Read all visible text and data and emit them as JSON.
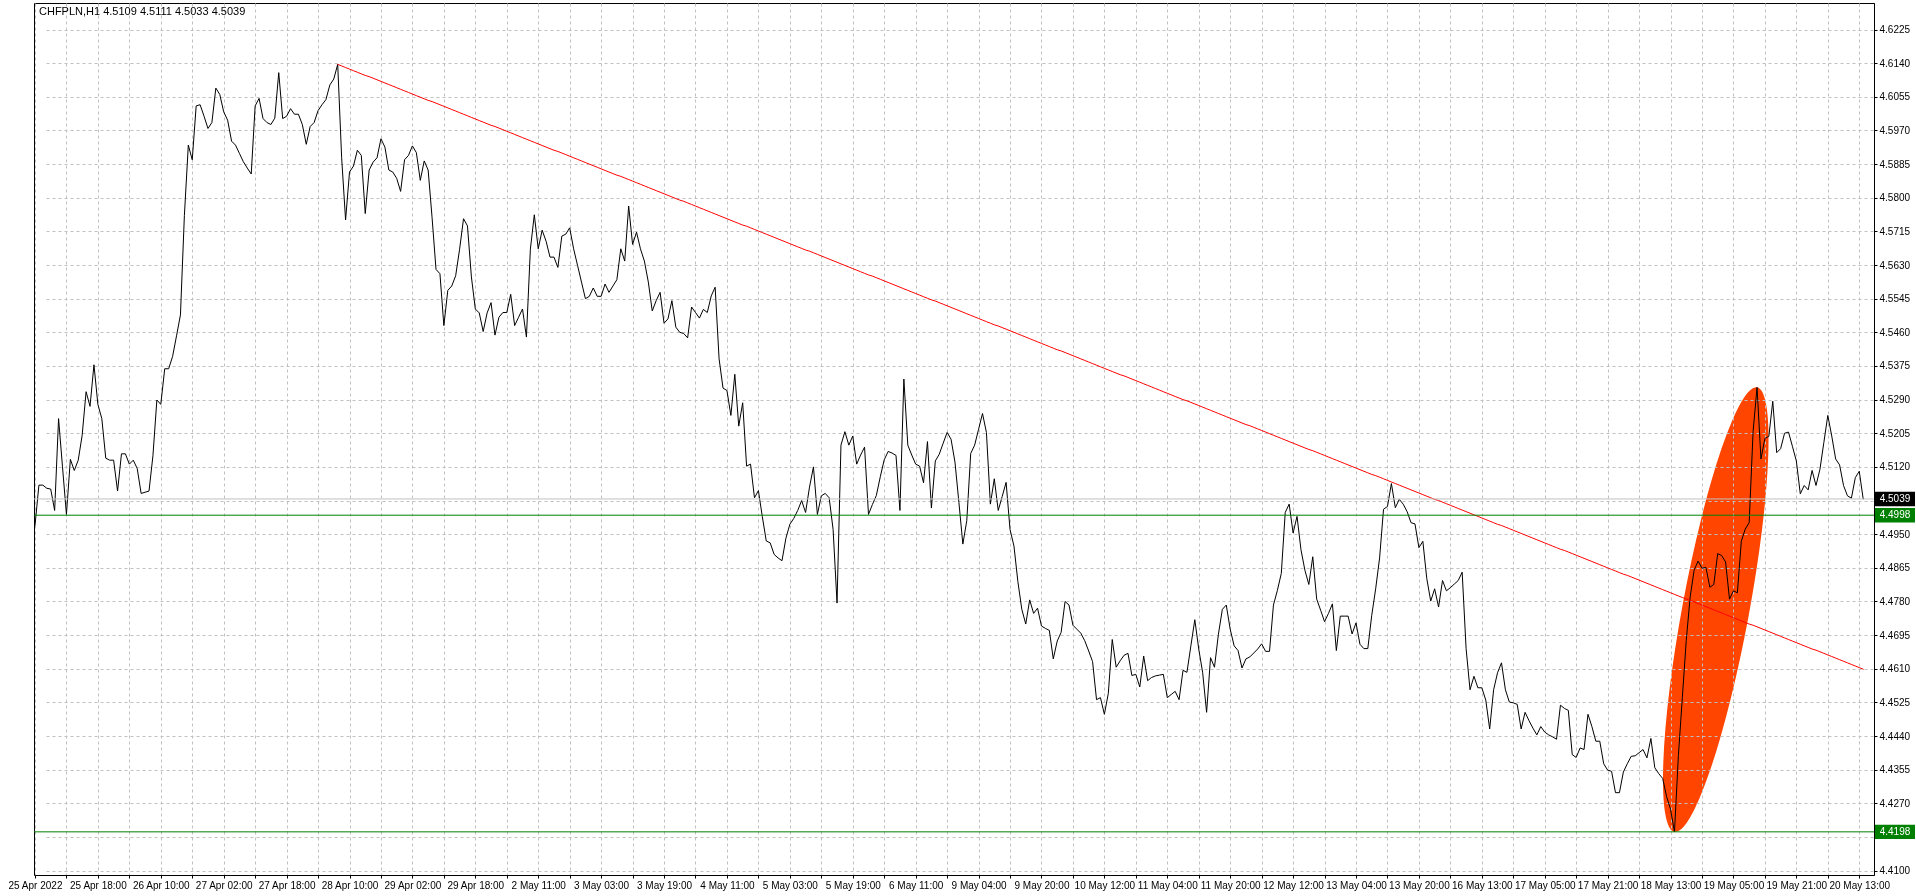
{
  "chart_data": {
    "type": "line",
    "title": "CHFPLN,H1 4.5109 4.5111 4.5033 4.5039",
    "categories": [
      "25 Apr 2022",
      null,
      null,
      null,
      null,
      null,
      null,
      null,
      null,
      null,
      null,
      null,
      null,
      null,
      null,
      null,
      "25 Apr 18:00",
      null,
      null,
      null,
      null,
      null,
      null,
      null,
      null,
      null,
      null,
      null,
      null,
      null,
      null,
      null,
      "26 Apr 10:00",
      null,
      null,
      null,
      null,
      null,
      null,
      null,
      null,
      null,
      null,
      null,
      null,
      null,
      null,
      null,
      "27 Apr 02:00",
      null,
      null,
      null,
      null,
      null,
      null,
      null,
      null,
      null,
      null,
      null,
      null,
      null,
      null,
      null,
      "27 Apr 18:00",
      null,
      null,
      null,
      null,
      null,
      null,
      null,
      null,
      null,
      null,
      null,
      null,
      null,
      null,
      null,
      "28 Apr 10:00",
      null,
      null,
      null,
      null,
      null,
      null,
      null,
      null,
      null,
      null,
      null,
      null,
      null,
      null,
      null,
      "29 Apr 02:00",
      null,
      null,
      null,
      null,
      null,
      null,
      null,
      null,
      null,
      null,
      null,
      null,
      null,
      null,
      null,
      "29 Apr 18:00",
      null,
      null,
      null,
      null,
      null,
      null,
      null,
      null,
      null,
      null,
      null,
      null,
      null,
      null,
      null,
      "2 May 11:00",
      null,
      null,
      null,
      null,
      null,
      null,
      null,
      null,
      null,
      null,
      null,
      null,
      null,
      null,
      null,
      "3 May 03:00",
      null,
      null,
      null,
      null,
      null,
      null,
      null,
      null,
      null,
      null,
      null,
      null,
      null,
      null,
      null,
      "3 May 19:00",
      null,
      null,
      null,
      null,
      null,
      null,
      null,
      null,
      null,
      null,
      null,
      null,
      null,
      null,
      null,
      "4 May 11:00",
      null,
      null,
      null,
      null,
      null,
      null,
      null,
      null,
      null,
      null,
      null,
      null,
      null,
      null,
      null,
      "5 May 03:00",
      null,
      null,
      null,
      null,
      null,
      null,
      null,
      null,
      null,
      null,
      null,
      null,
      null,
      null,
      null,
      "5 May 19:00",
      null,
      null,
      null,
      null,
      null,
      null,
      null,
      null,
      null,
      null,
      null,
      null,
      null,
      null,
      null,
      "6 May 11:00",
      null,
      null,
      null,
      null,
      null,
      null,
      null,
      null,
      null,
      null,
      null,
      null,
      null,
      null,
      null,
      "9 May 04:00",
      null,
      null,
      null,
      null,
      null,
      null,
      null,
      null,
      null,
      null,
      null,
      null,
      null,
      null,
      null,
      "9 May 20:00",
      null,
      null,
      null,
      null,
      null,
      null,
      null,
      null,
      null,
      null,
      null,
      null,
      null,
      null,
      null,
      "10 May 12:00",
      null,
      null,
      null,
      null,
      null,
      null,
      null,
      null,
      null,
      null,
      null,
      null,
      null,
      null,
      null,
      "11 May 04:00",
      null,
      null,
      null,
      null,
      null,
      null,
      null,
      null,
      null,
      null,
      null,
      null,
      null,
      null,
      null,
      "11 May 20:00",
      null,
      null,
      null,
      null,
      null,
      null,
      null,
      null,
      null,
      null,
      null,
      null,
      null,
      null,
      null,
      "12 May 12:00",
      null,
      null,
      null,
      null,
      null,
      null,
      null,
      null,
      null,
      null,
      null,
      null,
      null,
      null,
      null,
      "13 May 04:00",
      null,
      null,
      null,
      null,
      null,
      null,
      null,
      null,
      null,
      null,
      null,
      null,
      null,
      null,
      null,
      "13 May 20:00",
      null,
      null,
      null,
      null,
      null,
      null,
      null,
      null,
      null,
      null,
      null,
      null,
      null,
      null,
      null,
      "16 May 13:00",
      null,
      null,
      null,
      null,
      null,
      null,
      null,
      null,
      null,
      null,
      null,
      null,
      null,
      null,
      null,
      "17 May 05:00",
      null,
      null,
      null,
      null,
      null,
      null,
      null,
      null,
      null,
      null,
      null,
      null,
      null,
      null,
      null,
      "17 May 21:00",
      null,
      null,
      null,
      null,
      null,
      null,
      null,
      null,
      null,
      null,
      null,
      null,
      null,
      null,
      null,
      "18 May 13:00",
      null,
      null,
      null,
      null,
      null,
      null,
      null,
      null,
      null,
      null,
      null,
      null,
      null,
      null,
      null,
      "19 May 05:00",
      null,
      null,
      null,
      null,
      null,
      null,
      null,
      null,
      null,
      null,
      null,
      null,
      null,
      null,
      null,
      "19 May 21:00",
      null,
      null,
      null,
      null,
      null,
      null,
      null,
      null,
      null,
      null,
      null,
      null,
      null,
      null,
      null,
      "20 May 13:00",
      null
    ],
    "ylim": [
      4.4089,
      4.6292
    ],
    "yticks": [
      {
        "value": 4.41,
        "label": "4.4100"
      },
      {
        "value": 4.4185,
        "label": null
      },
      {
        "value": 4.427,
        "label": "4.4270"
      },
      4.4355,
      {
        "value": 4.444,
        "label": "4.4440"
      },
      4.4525,
      {
        "value": 4.461,
        "label": "4.4610"
      },
      4.4695,
      {
        "value": 4.478,
        "label": "4.4780"
      },
      4.4865,
      {
        "value": 4.495,
        "label": "4.4950"
      },
      {
        "value": 4.5035,
        "label": null
      },
      {
        "value": 4.512,
        "label": "4.5120"
      },
      4.5205,
      {
        "value": 4.529,
        "label": "4.5290"
      },
      4.5375,
      {
        "value": 4.546,
        "label": "4.5460"
      },
      4.5545,
      {
        "value": 4.563,
        "label": "4.5630"
      },
      4.5715,
      {
        "value": 4.58,
        "label": "4.5800"
      },
      4.5885,
      {
        "value": 4.597,
        "label": "4.5970"
      },
      4.6055,
      {
        "value": 4.614,
        "label": "4.6140"
      },
      4.6225
    ],
    "grid": true,
    "series": [
      {
        "color": "#000000",
        "values": [
          4.4972,
          4.5074,
          4.5074,
          4.5066,
          4.5064,
          4.501,
          4.5242,
          4.512,
          4.5,
          4.5139,
          4.5111,
          4.5137,
          4.52,
          4.531,
          4.5273,
          4.5378,
          4.5278,
          4.5242,
          4.5142,
          4.5137,
          4.5137,
          4.5059,
          4.5153,
          4.5153,
          4.5127,
          4.5137,
          4.5116,
          4.5053,
          4.5056,
          4.5059,
          4.5148,
          4.5289,
          4.5278,
          4.5368,
          4.5368,
          4.5399,
          4.5451,
          4.5504,
          4.5755,
          4.5933,
          4.5896,
          4.6032,
          4.6035,
          4.6006,
          4.5975,
          4.599,
          4.6077,
          4.6061,
          4.6017,
          4.5996,
          4.5943,
          4.5933,
          4.5912,
          4.5891,
          4.5875,
          4.586,
          4.6032,
          4.6051,
          4.6,
          4.599,
          4.5985,
          4.6001,
          4.6116,
          4.6,
          4.6006,
          4.6025,
          4.6011,
          4.6011,
          4.5985,
          4.5935,
          4.598,
          4.599,
          4.602,
          4.6035,
          4.6048,
          4.6085,
          4.61,
          4.6137,
          4.5901,
          4.5744,
          4.5865,
          4.588,
          4.592,
          4.5907,
          4.576,
          4.587,
          4.589,
          4.5901,
          4.5949,
          4.5928,
          4.587,
          4.5865,
          4.5849,
          4.5816,
          4.5896,
          4.5907,
          4.5931,
          4.5914,
          4.5844,
          4.5893,
          4.587,
          4.575,
          4.5619,
          4.5608,
          4.5477,
          4.5566,
          4.5577,
          4.5603,
          4.567,
          4.5747,
          4.5729,
          4.56,
          4.5519,
          4.5509,
          4.5462,
          4.5509,
          4.5535,
          4.5453,
          4.5498,
          4.551,
          4.551,
          4.5556,
          4.5477,
          4.5498,
          4.5519,
          4.5448,
          4.567,
          4.5757,
          4.5671,
          4.5718,
          4.569,
          4.565,
          4.565,
          4.5624,
          4.5703,
          4.5708,
          4.5724,
          4.5671,
          4.5629,
          4.5587,
          4.5545,
          4.5551,
          4.5572,
          4.5551,
          4.5551,
          4.5582,
          4.5561,
          4.5577,
          4.5593,
          4.5671,
          4.564,
          4.5779,
          4.5682,
          4.5713,
          4.5671,
          4.564,
          4.5587,
          4.5514,
          4.554,
          4.5561,
          4.5483,
          4.5494,
          4.554,
          4.5473,
          4.546,
          4.5457,
          4.5446,
          4.5524,
          4.551,
          4.5496,
          4.5518,
          4.551,
          4.5552,
          4.5574,
          4.5393,
          4.5319,
          4.5313,
          4.525,
          4.5354,
          4.5223,
          4.5282,
          4.5122,
          4.5127,
          4.5042,
          4.506,
          4.4994,
          4.4933,
          4.4928,
          4.4899,
          4.489,
          4.4883,
          4.494,
          4.4975,
          4.499,
          4.501,
          4.5035,
          4.5005,
          4.5069,
          4.512,
          4.5,
          4.5047,
          4.5053,
          4.5042,
          4.4962,
          4.4776,
          4.5175,
          4.5209,
          4.5175,
          4.5198,
          4.5127,
          4.515,
          4.517,
          4.5,
          4.5025,
          4.5048,
          4.5095,
          4.5138,
          4.5159,
          4.5155,
          4.5149,
          4.501,
          4.5342,
          4.5175,
          4.515,
          4.5127,
          4.5122,
          4.508,
          4.5184,
          4.5016,
          4.5135,
          4.5152,
          4.518,
          4.5207,
          4.519,
          4.5132,
          4.503,
          4.4925,
          4.4984,
          4.5154,
          4.5175,
          4.5215,
          4.5255,
          4.5207,
          4.5026,
          4.509,
          4.501,
          4.5045,
          4.5081,
          4.4962,
          4.492,
          4.483,
          4.476,
          4.4723,
          4.4784,
          4.475,
          4.4763,
          4.4718,
          4.4712,
          4.4707,
          4.4635,
          4.468,
          4.4702,
          4.478,
          4.4771,
          4.472,
          4.471,
          4.47,
          4.4681,
          4.4655,
          4.4628,
          4.4532,
          4.4537,
          4.4495,
          4.4548,
          4.4684,
          4.4614,
          4.463,
          4.4644,
          4.4649,
          4.4593,
          4.4596,
          4.4564,
          4.4642,
          4.458,
          4.4588,
          4.4592,
          4.4594,
          4.4596,
          4.4537,
          4.4545,
          4.4553,
          4.4532,
          4.4606,
          4.4601,
          4.4668,
          4.4734,
          4.466,
          4.46,
          4.45,
          4.4638,
          4.4614,
          4.4697,
          4.476,
          4.4771,
          4.471,
          4.4668,
          4.4656,
          4.4612,
          4.4635,
          4.464,
          4.465,
          4.466,
          4.4673,
          4.4654,
          4.4654,
          4.4771,
          4.4808,
          4.4851,
          4.5005,
          4.5026,
          4.4953,
          4.4995,
          4.4911,
          4.4859,
          4.4823,
          4.4893,
          4.4786,
          4.4758,
          4.4729,
          4.475,
          4.4774,
          4.4656,
          4.4743,
          4.4743,
          4.4743,
          4.4698,
          4.4726,
          4.4672,
          4.4661,
          4.4661,
          4.4745,
          4.4812,
          4.489,
          4.5013,
          4.502,
          4.5078,
          4.5017,
          4.5038,
          4.5026,
          4.5007,
          4.4979,
          4.4976,
          4.4916,
          4.4932,
          4.4838,
          4.4781,
          4.4812,
          4.4766,
          4.4833,
          4.4807,
          4.4815,
          4.4824,
          4.4833,
          4.4854,
          4.4661,
          4.4557,
          4.4591,
          4.4562,
          4.4562,
          4.4531,
          4.4458,
          4.4557,
          4.46,
          4.4625,
          4.4557,
          4.4526,
          4.4524,
          4.452,
          4.4458,
          4.45,
          4.4479,
          4.446,
          4.4443,
          4.4464,
          4.445,
          4.4443,
          4.4438,
          4.4432,
          4.4518,
          4.451,
          4.4505,
          4.4393,
          4.4386,
          4.441,
          4.4406,
          4.4495,
          4.4464,
          4.4427,
          4.4427,
          4.437,
          4.4354,
          4.4351,
          4.4297,
          4.4297,
          4.4349,
          4.437,
          4.4389,
          4.439,
          4.4398,
          4.4406,
          4.4385,
          4.4434,
          4.436,
          4.4345,
          4.4333,
          4.4287,
          4.4255,
          4.4198,
          4.4391,
          4.4537,
          4.4682,
          4.4792,
          4.4859,
          4.4882,
          4.4864,
          4.4866,
          4.4816,
          4.4823,
          4.4901,
          4.4896,
          4.488,
          4.4786,
          4.4807,
          4.4802,
          4.4932,
          4.4963,
          4.4979,
          4.521,
          4.5321,
          4.514,
          4.5192,
          4.5197,
          4.5286,
          4.5156,
          4.5166,
          4.5205,
          4.5208,
          4.5172,
          4.5135,
          4.5052,
          4.5073,
          4.5062,
          4.5111,
          4.5073,
          4.5114,
          4.5182,
          4.525,
          4.5198,
          4.514,
          4.5125,
          4.5073,
          4.5047,
          4.5041,
          4.5093,
          4.5109,
          4.5039
        ]
      },
      {
        "type": "line",
        "color": "#ff0000",
        "values": [
          null,
          null,
          null,
          null,
          null,
          null,
          null,
          null,
          null,
          null,
          null,
          null,
          null,
          null,
          null,
          null,
          null,
          null,
          null,
          null,
          null,
          null,
          null,
          null,
          null,
          null,
          null,
          null,
          null,
          null,
          null,
          null,
          null,
          null,
          null,
          null,
          null,
          null,
          null,
          null,
          null,
          null,
          null,
          null,
          null,
          null,
          null,
          null,
          null,
          null,
          null,
          null,
          null,
          null,
          null,
          null,
          null,
          null,
          null,
          null,
          null,
          null,
          null,
          null,
          null,
          null,
          null,
          null,
          null,
          null,
          null,
          null,
          null,
          null,
          null,
          null,
          null,
          4.6137,
          4.6133,
          4.6129,
          4.6125,
          4.6121,
          4.6117,
          4.6113,
          4.6109,
          4.6106,
          4.6102,
          4.6098,
          4.6094,
          4.609,
          4.6086,
          4.6082,
          4.6078,
          4.6074,
          4.607,
          4.6066,
          4.6062,
          4.6058,
          4.6054,
          4.605,
          4.6046,
          4.6043,
          4.6039,
          4.6035,
          4.6031,
          4.6027,
          4.6023,
          4.6019,
          4.6015,
          4.6011,
          4.6007,
          4.6003,
          4.5999,
          4.5995,
          4.5991,
          4.5987,
          4.5983,
          4.598,
          4.5976,
          4.5972,
          4.5968,
          4.5964,
          4.596,
          4.5956,
          4.5952,
          4.5948,
          4.5944,
          4.594,
          4.5936,
          4.5932,
          4.5928,
          4.5924,
          4.592,
          4.5917,
          4.5913,
          4.5909,
          4.5905,
          4.5901,
          4.5897,
          4.5893,
          4.5889,
          4.5885,
          4.5881,
          4.5877,
          4.5873,
          4.5869,
          4.5865,
          4.5861,
          4.5857,
          4.5854,
          4.585,
          4.5846,
          4.5842,
          4.5838,
          4.5834,
          4.583,
          4.5826,
          4.5822,
          4.5818,
          4.5814,
          4.581,
          4.5806,
          4.5802,
          4.5798,
          4.5794,
          4.5791,
          4.5787,
          4.5783,
          4.5779,
          4.5775,
          4.5771,
          4.5767,
          4.5763,
          4.5759,
          4.5755,
          4.5751,
          4.5747,
          4.5743,
          4.5739,
          4.5735,
          4.5731,
          4.5728,
          4.5724,
          4.572,
          4.5716,
          4.5712,
          4.5708,
          4.5704,
          4.57,
          4.5696,
          4.5692,
          4.5688,
          4.5684,
          4.568,
          4.5676,
          4.5672,
          4.5668,
          4.5665,
          4.5661,
          4.5657,
          4.5653,
          4.5649,
          4.5645,
          4.5641,
          4.5637,
          4.5633,
          4.5629,
          4.5625,
          4.5621,
          4.5617,
          4.5613,
          4.5609,
          4.5605,
          4.5602,
          4.5598,
          4.5594,
          4.559,
          4.5586,
          4.5582,
          4.5578,
          4.5574,
          4.557,
          4.5566,
          4.5562,
          4.5558,
          4.5554,
          4.555,
          4.5546,
          4.5542,
          4.5539,
          4.5535,
          4.5531,
          4.5527,
          4.5523,
          4.5519,
          4.5515,
          4.5511,
          4.5507,
          4.5503,
          4.5499,
          4.5495,
          4.5491,
          4.5487,
          4.5483,
          4.5479,
          4.5476,
          4.5472,
          4.5468,
          4.5464,
          4.546,
          4.5456,
          4.5452,
          4.5448,
          4.5444,
          4.544,
          4.5436,
          4.5432,
          4.5428,
          4.5424,
          4.542,
          4.5416,
          4.5413,
          4.5409,
          4.5405,
          4.5401,
          4.5397,
          4.5393,
          4.5389,
          4.5385,
          4.5381,
          4.5377,
          4.5373,
          4.5369,
          4.5365,
          4.5361,
          4.5357,
          4.5353,
          4.535,
          4.5346,
          4.5342,
          4.5338,
          4.5334,
          4.533,
          4.5326,
          4.5322,
          4.5318,
          4.5314,
          4.531,
          4.5306,
          4.5302,
          4.5298,
          4.5294,
          4.529,
          4.5287,
          4.5283,
          4.5279,
          4.5275,
          4.5271,
          4.5267,
          4.5263,
          4.5259,
          4.5255,
          4.5251,
          4.5247,
          4.5243,
          4.5239,
          4.5235,
          4.5231,
          4.5227,
          4.5224,
          4.522,
          4.5216,
          4.5212,
          4.5208,
          4.5204,
          4.52,
          4.5196,
          4.5192,
          4.5188,
          4.5184,
          4.518,
          4.5176,
          4.5172,
          4.5168,
          4.5164,
          4.5161,
          4.5157,
          4.5153,
          4.5149,
          4.5145,
          4.5141,
          4.5137,
          4.5133,
          4.5129,
          4.5125,
          4.5121,
          4.5117,
          4.5113,
          4.5109,
          4.5105,
          4.5101,
          4.5098,
          4.5094,
          4.509,
          4.5086,
          4.5082,
          4.5078,
          4.5074,
          4.507,
          4.5066,
          4.5062,
          4.5058,
          4.5054,
          4.505,
          4.5046,
          4.5042,
          4.5038,
          4.5035,
          4.5031,
          4.5027,
          4.5023,
          4.5019,
          4.5015,
          4.5011,
          4.5007,
          4.5003,
          4.4999,
          4.4995,
          4.4991,
          4.4987,
          4.4983,
          4.4979,
          4.4975,
          4.4972,
          4.4968,
          4.4964,
          4.496,
          4.4956,
          4.4952,
          4.4948,
          4.4944,
          4.494,
          4.4936,
          4.4932,
          4.4928,
          4.4924,
          4.492,
          4.4916,
          4.4912,
          4.4909,
          4.4905,
          4.4901,
          4.4897,
          4.4893,
          4.4889,
          4.4885,
          4.4881,
          4.4877,
          4.4873,
          4.4869,
          4.4865,
          4.4861,
          4.4857,
          4.4853,
          4.4849,
          4.4846,
          4.4842,
          4.4838,
          4.4834,
          4.483,
          4.4826,
          4.4822,
          4.4818,
          4.4814,
          4.481,
          4.4806,
          4.4802,
          4.4798,
          4.4794,
          4.479,
          4.4786,
          4.4783,
          4.4779,
          4.4775,
          4.4771,
          4.4767,
          4.4763,
          4.4759,
          4.4755,
          4.4751,
          4.4747,
          4.4743,
          4.4739,
          4.4735,
          4.4731,
          4.4727,
          4.4723,
          4.472,
          4.4716,
          4.4712,
          4.4708,
          4.4704,
          4.47,
          4.4696,
          4.4692,
          4.4688,
          4.4684,
          4.468,
          4.4676,
          4.4672,
          4.4668,
          4.4664,
          4.466,
          4.4657,
          4.4653,
          4.4649,
          4.4645,
          4.4641,
          4.4637,
          4.4633,
          4.4629,
          4.4625,
          4.4621,
          4.4617,
          4.4613,
          4.4609
        ]
      }
    ],
    "ref_lines": [
      {
        "axis": "y",
        "value": 4.4998,
        "label": "4.4998",
        "color": "#008000"
      },
      {
        "axis": "y",
        "value": 4.4198,
        "label": "4.4198",
        "color": "#008000"
      },
      {
        "axis": "y",
        "value": 4.5039,
        "label": "4.5039",
        "color": "#c0c0c0"
      }
    ]
  }
}
